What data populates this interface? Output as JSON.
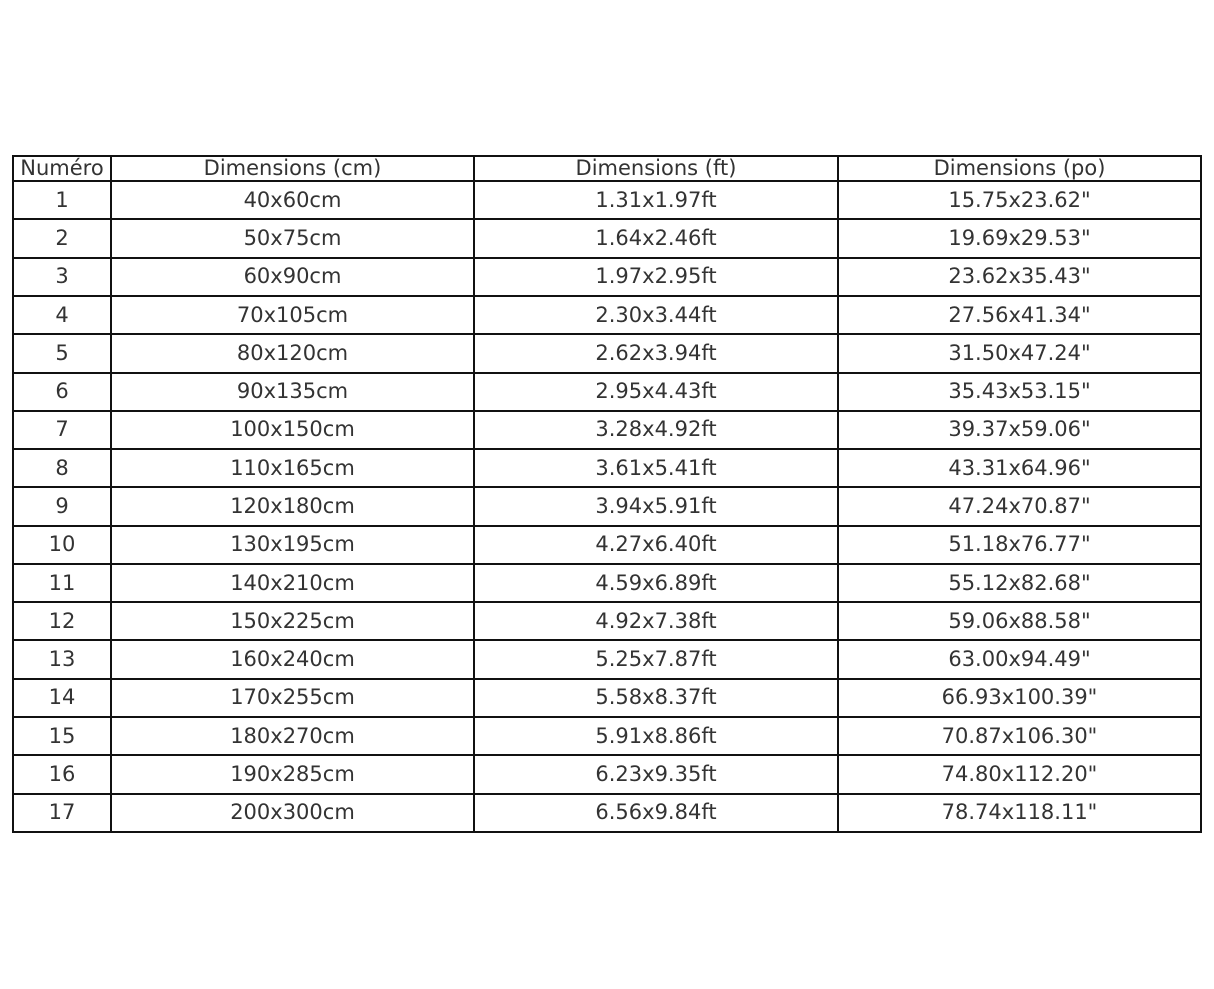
{
  "page": {
    "background_color": "#ffffff",
    "text_color": "#333333",
    "border_color": "#111111"
  },
  "table": {
    "name": "size-conversion-table",
    "columns": [
      "Numéro",
      "Dimensions (cm)",
      "Dimensions (ft)",
      "Dimensions (po)"
    ],
    "rows": [
      [
        "1",
        "40x60cm",
        "1.31x1.97ft",
        "15.75x23.62\""
      ],
      [
        "2",
        "50x75cm",
        "1.64x2.46ft",
        "19.69x29.53\""
      ],
      [
        "3",
        "60x90cm",
        "1.97x2.95ft",
        "23.62x35.43\""
      ],
      [
        "4",
        "70x105cm",
        "2.30x3.44ft",
        "27.56x41.34\""
      ],
      [
        "5",
        "80x120cm",
        "2.62x3.94ft",
        "31.50x47.24\""
      ],
      [
        "6",
        "90x135cm",
        "2.95x4.43ft",
        "35.43x53.15\""
      ],
      [
        "7",
        "100x150cm",
        "3.28x4.92ft",
        "39.37x59.06\""
      ],
      [
        "8",
        "110x165cm",
        "3.61x5.41ft",
        "43.31x64.96\""
      ],
      [
        "9",
        "120x180cm",
        "3.94x5.91ft",
        "47.24x70.87\""
      ],
      [
        "10",
        "130x195cm",
        "4.27x6.40ft",
        "51.18x76.77\""
      ],
      [
        "11",
        "140x210cm",
        "4.59x6.89ft",
        "55.12x82.68\""
      ],
      [
        "12",
        "150x225cm",
        "4.92x7.38ft",
        "59.06x88.58\""
      ],
      [
        "13",
        "160x240cm",
        "5.25x7.87ft",
        "63.00x94.49\""
      ],
      [
        "14",
        "170x255cm",
        "5.58x8.37ft",
        "66.93x100.39\""
      ],
      [
        "15",
        "180x270cm",
        "5.91x8.86ft",
        "70.87x106.30\""
      ],
      [
        "16",
        "190x285cm",
        "6.23x9.35ft",
        "74.80x112.20\""
      ],
      [
        "17",
        "200x300cm",
        "6.56x9.84ft",
        "78.74x118.11\""
      ]
    ]
  }
}
